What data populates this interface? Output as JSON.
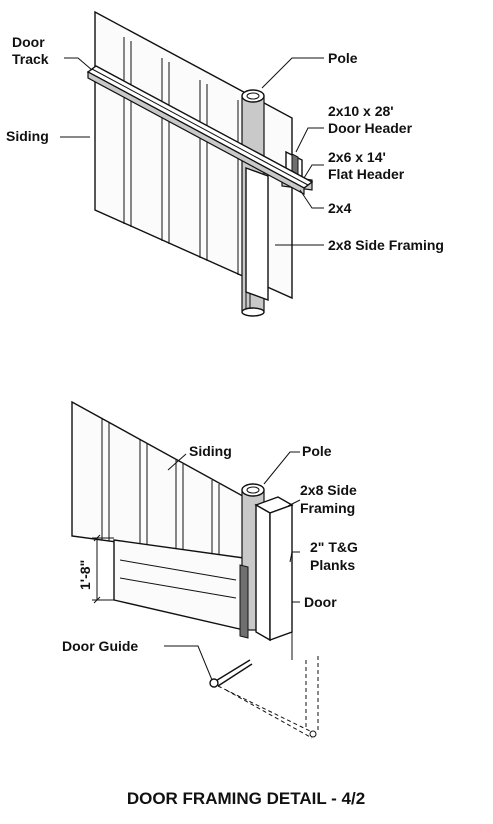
{
  "top_detail": {
    "labels": {
      "door_track": [
        "Door",
        "Track"
      ],
      "siding": "Siding",
      "pole": "Pole",
      "door_header": [
        "2x10 x 28'",
        "Door Header"
      ],
      "flat_header": [
        "2x6 x 14'",
        "Flat Header"
      ],
      "two_by_four": "2x4",
      "side_framing": "2x8 Side Framing"
    }
  },
  "bottom_detail": {
    "labels": {
      "siding": "Siding",
      "pole": "Pole",
      "side_framing": [
        "2x8 Side",
        "Framing"
      ],
      "planks": [
        "2\" T&G",
        "Planks"
      ],
      "door": "Door",
      "door_guide": "Door Guide",
      "dimension": "1'-8\""
    }
  },
  "caption": "DOOR FRAMING DETAIL - 4/2"
}
